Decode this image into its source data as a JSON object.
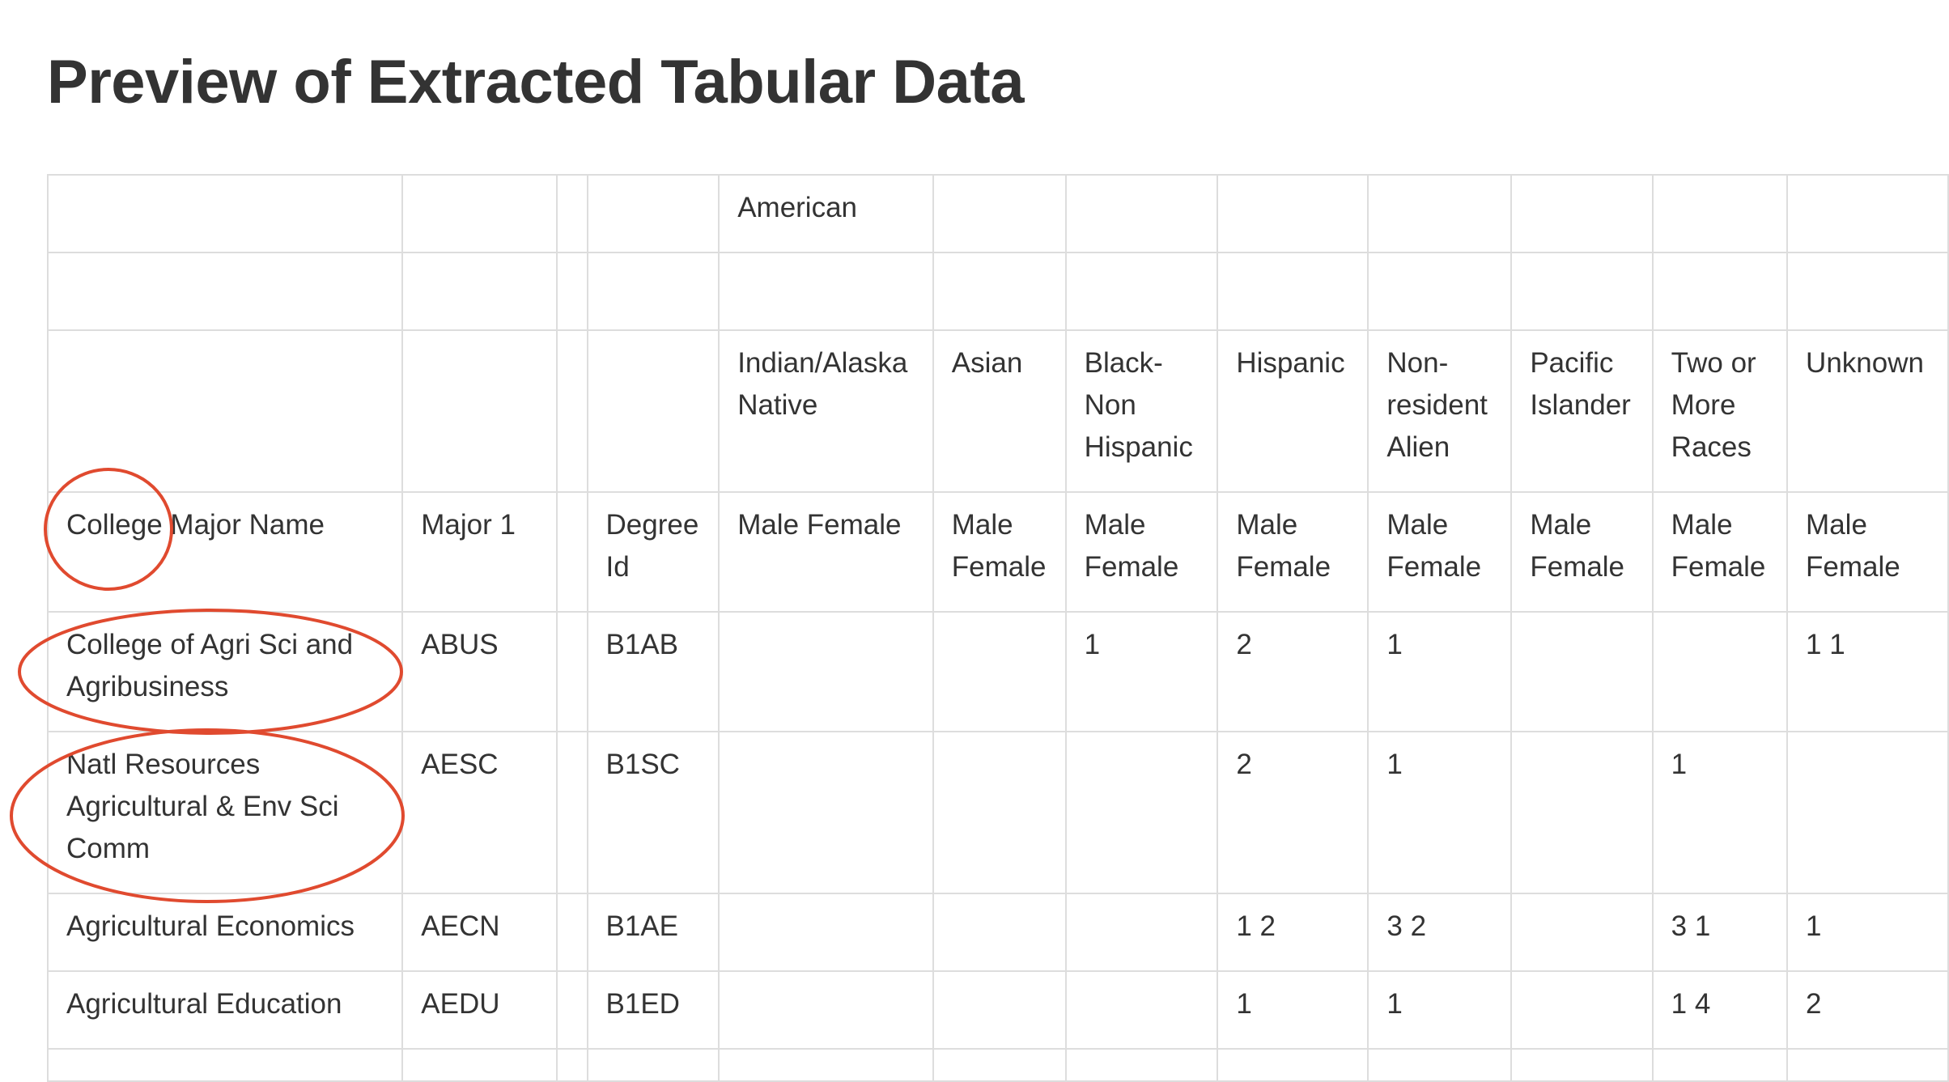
{
  "page": {
    "title": "Preview of Extracted Tabular Data"
  },
  "table": {
    "header_rows": [
      [
        "",
        "",
        "",
        "",
        "American",
        "",
        "",
        "",
        "",
        "",
        "",
        ""
      ],
      [
        "",
        "",
        "",
        "",
        "",
        "",
        "",
        "",
        "",
        "",
        "",
        ""
      ],
      [
        "",
        "",
        "",
        "",
        "Indian/Alaska Native",
        "Asian",
        "Black-Non Hispanic",
        "Hispanic",
        "Non-resident Alien",
        "Pacific Islander",
        "Two or More Races",
        "Unknown"
      ],
      [
        "College Major Name",
        "Major 1",
        "",
        "Degree Id",
        "Male Female",
        "Male Female",
        "Male Female",
        "Male Female",
        "Male Female",
        "Male Female",
        "Male Female",
        "Male Female"
      ]
    ],
    "rows": [
      [
        "College of Agri Sci and Agribusiness",
        "ABUS",
        "",
        "B1AB",
        "",
        "",
        "1",
        "2",
        "1",
        "",
        "",
        "1 1"
      ],
      [
        "Natl Resources Agricultural & Env Sci Comm",
        "AESC",
        "",
        "B1SC",
        "",
        "",
        "",
        "2",
        "1",
        "",
        "1",
        ""
      ],
      [
        "Agricultural Economics",
        "AECN",
        "",
        "B1AE",
        "",
        "",
        "",
        "1 2",
        "3 2",
        "",
        "3 1",
        "1"
      ],
      [
        "Agricultural Education",
        "AEDU",
        "",
        "B1ED",
        "",
        "",
        "",
        "1",
        "1",
        "",
        "1 4",
        "2"
      ],
      [
        "",
        "",
        "",
        "",
        "",
        "",
        "",
        "",
        "",
        "",
        "",
        ""
      ]
    ]
  },
  "annotations": {
    "color": "#e04a2f",
    "marks": [
      "circle around 'College' header",
      "ellipse around row 1 name",
      "ellipse around row 2 name"
    ]
  }
}
